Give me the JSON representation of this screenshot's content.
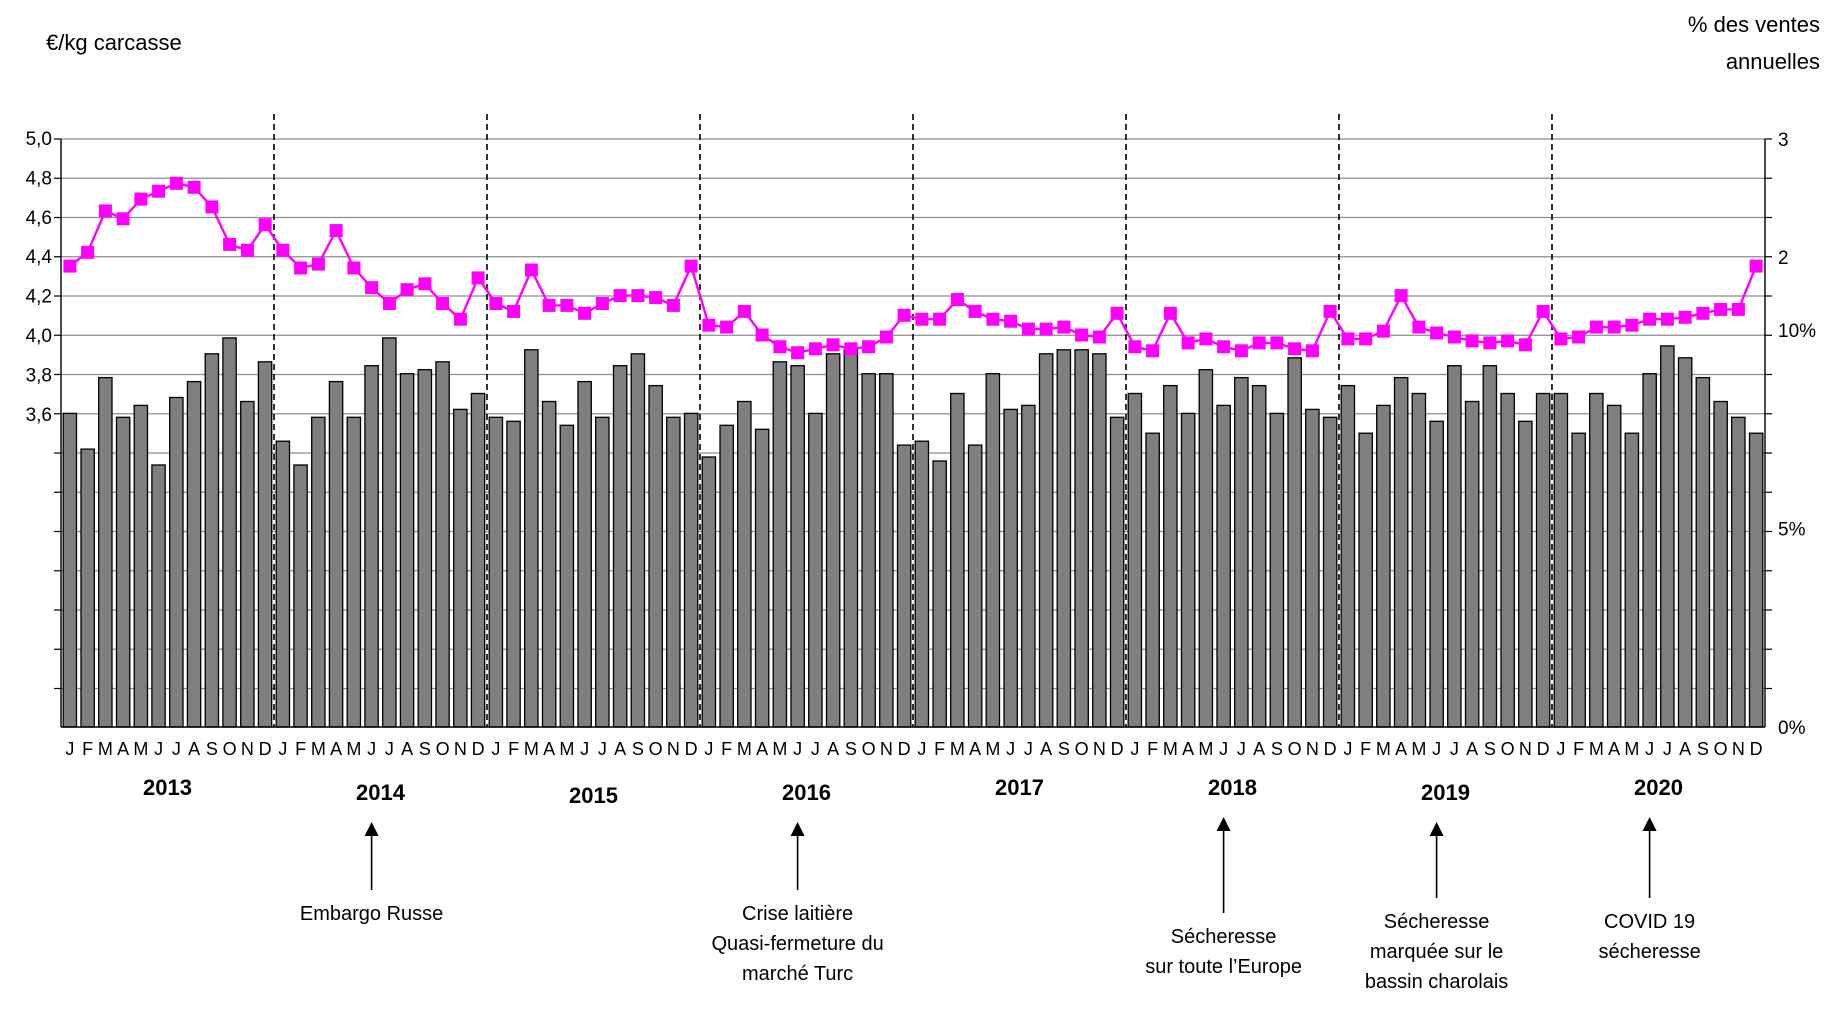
{
  "chart_data": {
    "type": "bar+line",
    "left_axis_label": "€/kg carcasse",
    "right_axis_label_lines": [
      "% des ventes",
      "annuelles"
    ],
    "left_ticks": [
      "3,6",
      "3,8",
      "4,0",
      "4,2",
      "4,4",
      "4,6",
      "4,8",
      "5,0"
    ],
    "left_tick_values": [
      3.6,
      3.8,
      4.0,
      4.2,
      4.4,
      4.6,
      4.8,
      5.0
    ],
    "right_ticks": [
      "0%",
      "5%",
      "10%"
    ],
    "right_tick_values": [
      0,
      5,
      10
    ],
    "right_top_partial_ticks": [
      "3",
      "2"
    ],
    "month_letters": [
      "J",
      "F",
      "M",
      "A",
      "M",
      "J",
      "J",
      "A",
      "S",
      "O",
      "N",
      "D"
    ],
    "years": [
      "2013",
      "2014",
      "2015",
      "2016",
      "2017",
      "2018",
      "2019",
      "2020"
    ],
    "price_line_color": "#ff00ff",
    "bar_color": "#7f7f7f",
    "price": [
      4.35,
      4.42,
      4.63,
      4.59,
      4.69,
      4.73,
      4.77,
      4.75,
      4.65,
      4.46,
      4.43,
      4.56,
      4.43,
      4.34,
      4.36,
      4.53,
      4.34,
      4.24,
      4.16,
      4.23,
      4.26,
      4.16,
      4.08,
      4.29,
      4.16,
      4.12,
      4.33,
      4.15,
      4.15,
      4.11,
      4.16,
      4.2,
      4.2,
      4.19,
      4.15,
      4.35,
      4.05,
      4.04,
      4.12,
      4.0,
      3.94,
      3.91,
      3.93,
      3.95,
      3.93,
      3.94,
      3.99,
      4.1,
      4.08,
      4.08,
      4.18,
      4.12,
      4.08,
      4.07,
      4.03,
      4.03,
      4.04,
      4.0,
      3.99,
      4.11,
      3.94,
      3.92,
      4.11,
      3.96,
      3.98,
      3.94,
      3.92,
      3.96,
      3.96,
      3.93,
      3.92,
      4.12,
      3.98,
      3.98,
      4.02,
      4.2,
      4.04,
      4.01,
      3.99,
      3.97,
      3.96,
      3.97,
      3.95,
      4.12,
      3.98,
      3.99,
      4.04,
      4.04,
      4.05,
      4.08,
      4.08,
      4.09,
      4.11,
      4.13,
      4.13,
      4.35
    ],
    "sales_pct": [
      7.9,
      7.0,
      8.8,
      7.8,
      8.1,
      6.6,
      8.3,
      8.7,
      9.4,
      9.8,
      8.2,
      9.2,
      7.2,
      6.6,
      7.8,
      8.7,
      7.8,
      9.1,
      9.8,
      8.9,
      9.0,
      9.2,
      8.0,
      8.4,
      7.8,
      7.7,
      9.5,
      8.2,
      7.6,
      8.7,
      7.8,
      9.1,
      9.4,
      8.6,
      7.8,
      7.9,
      6.8,
      7.6,
      8.2,
      7.5,
      9.2,
      9.1,
      7.9,
      9.4,
      9.5,
      8.9,
      8.9,
      7.1,
      7.2,
      6.7,
      8.4,
      7.1,
      8.9,
      8.0,
      8.1,
      9.4,
      9.5,
      9.5,
      9.4,
      7.8,
      8.4,
      7.4,
      8.6,
      7.9,
      9.0,
      8.1,
      8.8,
      8.6,
      7.9,
      9.3,
      8.0,
      7.8,
      8.6,
      7.4,
      8.1,
      8.8,
      8.4,
      7.7,
      9.1,
      8.2,
      9.1,
      8.4,
      7.7,
      8.4,
      8.4,
      7.4,
      8.4,
      8.1,
      7.4,
      8.9,
      9.6,
      9.3,
      8.8,
      8.2,
      7.8,
      7.4
    ],
    "annotations": [
      {
        "year": "2014",
        "month_index": 17,
        "lines": [
          "Embargo Russe"
        ]
      },
      {
        "year": "2016",
        "month_index": 41,
        "lines": [
          "Crise laitière",
          "Quasi-fermeture du",
          "marché Turc"
        ]
      },
      {
        "year": "2018",
        "month_index": 65,
        "lines": [
          "Sécheresse",
          "sur toute l’Europe"
        ]
      },
      {
        "year": "2019",
        "month_index": 77,
        "lines": [
          "Sécheresse",
          "marquée sur le",
          "bassin charolais"
        ]
      },
      {
        "year": "2020",
        "month_index": 89,
        "lines": [
          "COVID 19",
          "sécheresse"
        ]
      }
    ]
  }
}
